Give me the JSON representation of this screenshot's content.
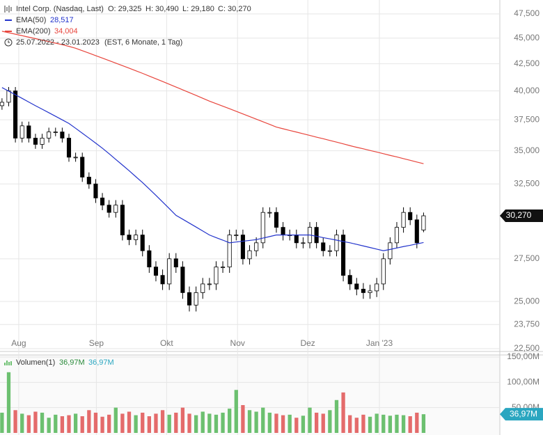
{
  "chart_data": {
    "type": "candlestick",
    "header": {
      "name": "Intel Corp. (Nasdaq, Last)",
      "open": "O: 29,325",
      "high": "H: 30,490",
      "low": "L: 29,180",
      "close": "C: 30,270",
      "period": "25.07.2022 - 23.01.2023",
      "period_note": "(EST, 6 Monate, 1 Tag)"
    },
    "open": [
      38700,
      39000,
      40000,
      36000,
      37000,
      36000,
      35500,
      36000,
      36500,
      36500,
      36000,
      34500,
      34500,
      33000,
      32500,
      31500,
      31000,
      30500,
      31000,
      29000,
      28700,
      29000,
      28000,
      27000,
      26500,
      26000,
      27500,
      27000,
      25500,
      24800,
      25500,
      26000,
      26000,
      27000,
      27000,
      29000,
      29000,
      27500,
      28000,
      28500,
      30500,
      30500,
      29500,
      29000,
      29000,
      28500,
      28500,
      29500,
      28500,
      28000,
      28000,
      29000,
      26500,
      26000,
      25700,
      25500,
      25600,
      26000,
      27500,
      28500,
      29500,
      30500,
      30000,
      29325
    ],
    "high": [
      39350,
      40350,
      40350,
      37350,
      37350,
      36350,
      36350,
      36850,
      36850,
      36850,
      36350,
      34850,
      34850,
      33350,
      32850,
      31850,
      31350,
      31350,
      31350,
      29350,
      29350,
      29350,
      28350,
      27350,
      26850,
      27850,
      27850,
      27350,
      25850,
      25850,
      26350,
      26350,
      27350,
      27350,
      29350,
      29350,
      29350,
      28350,
      28850,
      30850,
      30850,
      30850,
      29850,
      29350,
      29350,
      28850,
      29850,
      29850,
      28850,
      28350,
      29350,
      29350,
      26850,
      26350,
      26050,
      25950,
      26350,
      27850,
      28850,
      29850,
      30850,
      30850,
      30350,
      30490
    ],
    "low": [
      38350,
      38650,
      35650,
      35650,
      35650,
      35150,
      35150,
      35650,
      36150,
      35650,
      34150,
      34150,
      32650,
      32150,
      31150,
      30650,
      30150,
      30150,
      28650,
      28350,
      28350,
      27650,
      26650,
      26150,
      25650,
      25650,
      26650,
      25150,
      24450,
      24450,
      25150,
      25650,
      25650,
      26650,
      26650,
      28650,
      27150,
      27150,
      27650,
      28150,
      30150,
      29150,
      28650,
      28650,
      28150,
      28150,
      28150,
      28150,
      27650,
      27650,
      27650,
      26150,
      25650,
      25350,
      25150,
      25150,
      25250,
      25650,
      27150,
      28150,
      29150,
      29650,
      28150,
      29180
    ],
    "close": [
      39000,
      40000,
      36000,
      37000,
      36000,
      35500,
      36000,
      36500,
      36500,
      36000,
      34500,
      34500,
      33000,
      32500,
      31500,
      31000,
      30500,
      31000,
      29000,
      28700,
      29000,
      28000,
      27000,
      26500,
      26000,
      27500,
      27000,
      25500,
      24800,
      25500,
      26000,
      26000,
      27000,
      27000,
      29000,
      29000,
      27500,
      28000,
      28500,
      30500,
      30500,
      29500,
      29000,
      29000,
      28500,
      28500,
      29500,
      28500,
      28000,
      28000,
      29000,
      26500,
      26000,
      25700,
      25500,
      25600,
      26000,
      27500,
      28500,
      29500,
      30500,
      30000,
      28500,
      30270
    ],
    "last_label": "30,270",
    "series": [
      {
        "name": "EMA(50)",
        "value_label": "28,517",
        "color": "#2233cc",
        "values": [
          40300,
          39980,
          39660,
          39340,
          39020,
          38700,
          38400,
          38100,
          37800,
          37500,
          37200,
          36800,
          36400,
          36000,
          35600,
          35200,
          34770,
          34330,
          33900,
          33470,
          33030,
          32600,
          32140,
          31680,
          31220,
          30760,
          30300,
          30040,
          29780,
          29520,
          29260,
          29000,
          28830,
          28670,
          28500,
          28550,
          28600,
          28650,
          28700,
          28800,
          28900,
          29000,
          29000,
          29000,
          29000,
          29000,
          29000,
          28920,
          28830,
          28750,
          28670,
          28580,
          28500,
          28400,
          28300,
          28200,
          28100,
          28000,
          28080,
          28170,
          28260,
          28340,
          28430,
          28517
        ]
      },
      {
        "name": "EMA(200)",
        "value_label": "34,004",
        "color": "#e8453c",
        "values": [
          45700,
          45550,
          45400,
          45250,
          45100,
          44950,
          44800,
          44650,
          44500,
          44350,
          44180,
          44000,
          43760,
          43520,
          43280,
          43040,
          42800,
          42560,
          42320,
          42080,
          41840,
          41600,
          41350,
          41100,
          40850,
          40600,
          40350,
          40100,
          39850,
          39600,
          39350,
          39100,
          38880,
          38660,
          38440,
          38220,
          38000,
          37780,
          37560,
          37340,
          37120,
          36900,
          36760,
          36620,
          36490,
          36350,
          36220,
          36080,
          35950,
          35810,
          35680,
          35540,
          35400,
          35270,
          35150,
          35020,
          34900,
          34770,
          34640,
          34520,
          34390,
          34260,
          34130,
          34004
        ]
      }
    ],
    "ylim": [
      22500,
      47500
    ],
    "log_scale": true,
    "yticks": [
      {
        "value": 22500,
        "label": "22,500"
      },
      {
        "value": 23750,
        "label": "23,750"
      },
      {
        "value": 25000,
        "label": "25,000"
      },
      {
        "value": 27500,
        "label": "27,500"
      },
      {
        "value": 32500,
        "label": "32,500"
      },
      {
        "value": 35000,
        "label": "35,000"
      },
      {
        "value": 37500,
        "label": "37,500"
      },
      {
        "value": 40000,
        "label": "40,000"
      },
      {
        "value": 42500,
        "label": "42,500"
      },
      {
        "value": 45000,
        "label": "45,000"
      },
      {
        "value": 47500,
        "label": "47,500"
      }
    ],
    "xlim": [
      -0.3,
      74.4
    ],
    "xticks": [
      {
        "value": 2.5,
        "label": "Aug"
      },
      {
        "value": 14.1,
        "label": "Sep"
      },
      {
        "value": 24.6,
        "label": "Okt"
      },
      {
        "value": 35.2,
        "label": "Nov"
      },
      {
        "value": 45.7,
        "label": "Dez"
      },
      {
        "value": 56.4,
        "label": "Jan '23"
      }
    ],
    "up_color": "#ffffff",
    "down_color": "#000000",
    "grid": true,
    "volume": {
      "name": "Volumen(1)",
      "value_label": "36,97M",
      "average_label": "36,97M",
      "up_color": "#6cc070",
      "down_color": "#e46b6b",
      "tag_color": "#2aa6c0",
      "values": [
        40,
        120,
        45,
        38,
        35,
        42,
        40,
        30,
        36,
        33,
        35,
        38,
        33,
        45,
        40,
        32,
        36,
        50,
        38,
        42,
        35,
        40,
        33,
        38,
        45,
        36,
        40,
        50,
        38,
        35,
        42,
        38,
        36,
        40,
        48,
        85,
        55,
        45,
        42,
        50,
        40,
        38,
        35,
        36,
        30,
        34,
        50,
        40,
        38,
        45,
        65,
        80,
        35,
        30,
        36,
        32,
        38,
        36,
        34,
        36,
        35,
        33,
        40,
        36.97
      ],
      "ylim": [
        0,
        150
      ],
      "yticks": [
        {
          "value": 50,
          "label": "50,00M"
        },
        {
          "value": 100,
          "label": "100,00M"
        },
        {
          "value": 150,
          "label": "150,00M"
        }
      ]
    }
  }
}
